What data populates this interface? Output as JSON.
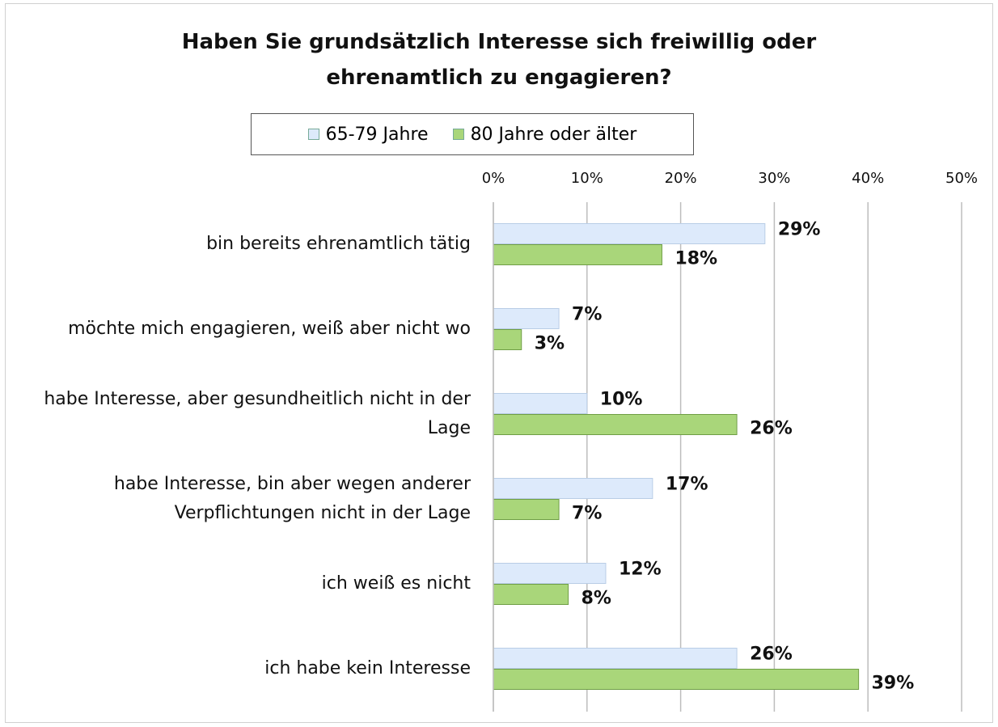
{
  "chart_data": {
    "type": "bar",
    "orientation": "horizontal",
    "title": "Haben Sie grundsätzlich Interesse sich freiwillig oder ehrenamtlich zu engagieren?",
    "categories": [
      "bin bereits ehrenamtlich tätig",
      "möchte mich engagieren, weiß aber nicht wo",
      "habe Interesse, aber gesundheitlich nicht in der Lage",
      "habe Interesse, bin aber wegen anderer Verpflichtungen nicht in der Lage",
      "ich weiß es nicht",
      "ich habe kein Interesse"
    ],
    "series": [
      {
        "name": "65-79 Jahre",
        "color": "#ddeafb",
        "values": [
          29,
          7,
          10,
          17,
          12,
          26
        ],
        "value_labels": [
          "29%",
          "7%",
          "10%",
          "17%",
          "12%",
          "26%"
        ]
      },
      {
        "name": "80 Jahre oder älter",
        "color": "#a9d67a",
        "values": [
          18,
          3,
          26,
          7,
          8,
          39
        ],
        "value_labels": [
          "18%",
          "3%",
          "26%",
          "7%",
          "8%",
          "39%"
        ]
      }
    ],
    "xlim": [
      0,
      50
    ],
    "xticks": [
      {
        "value": 0,
        "label": "0%"
      },
      {
        "value": 10,
        "label": "10%"
      },
      {
        "value": 20,
        "label": "20%"
      },
      {
        "value": 30,
        "label": "30%"
      },
      {
        "value": 40,
        "label": "40%"
      },
      {
        "value": 50,
        "label": "50%"
      }
    ],
    "grid": true,
    "legend": "top"
  }
}
